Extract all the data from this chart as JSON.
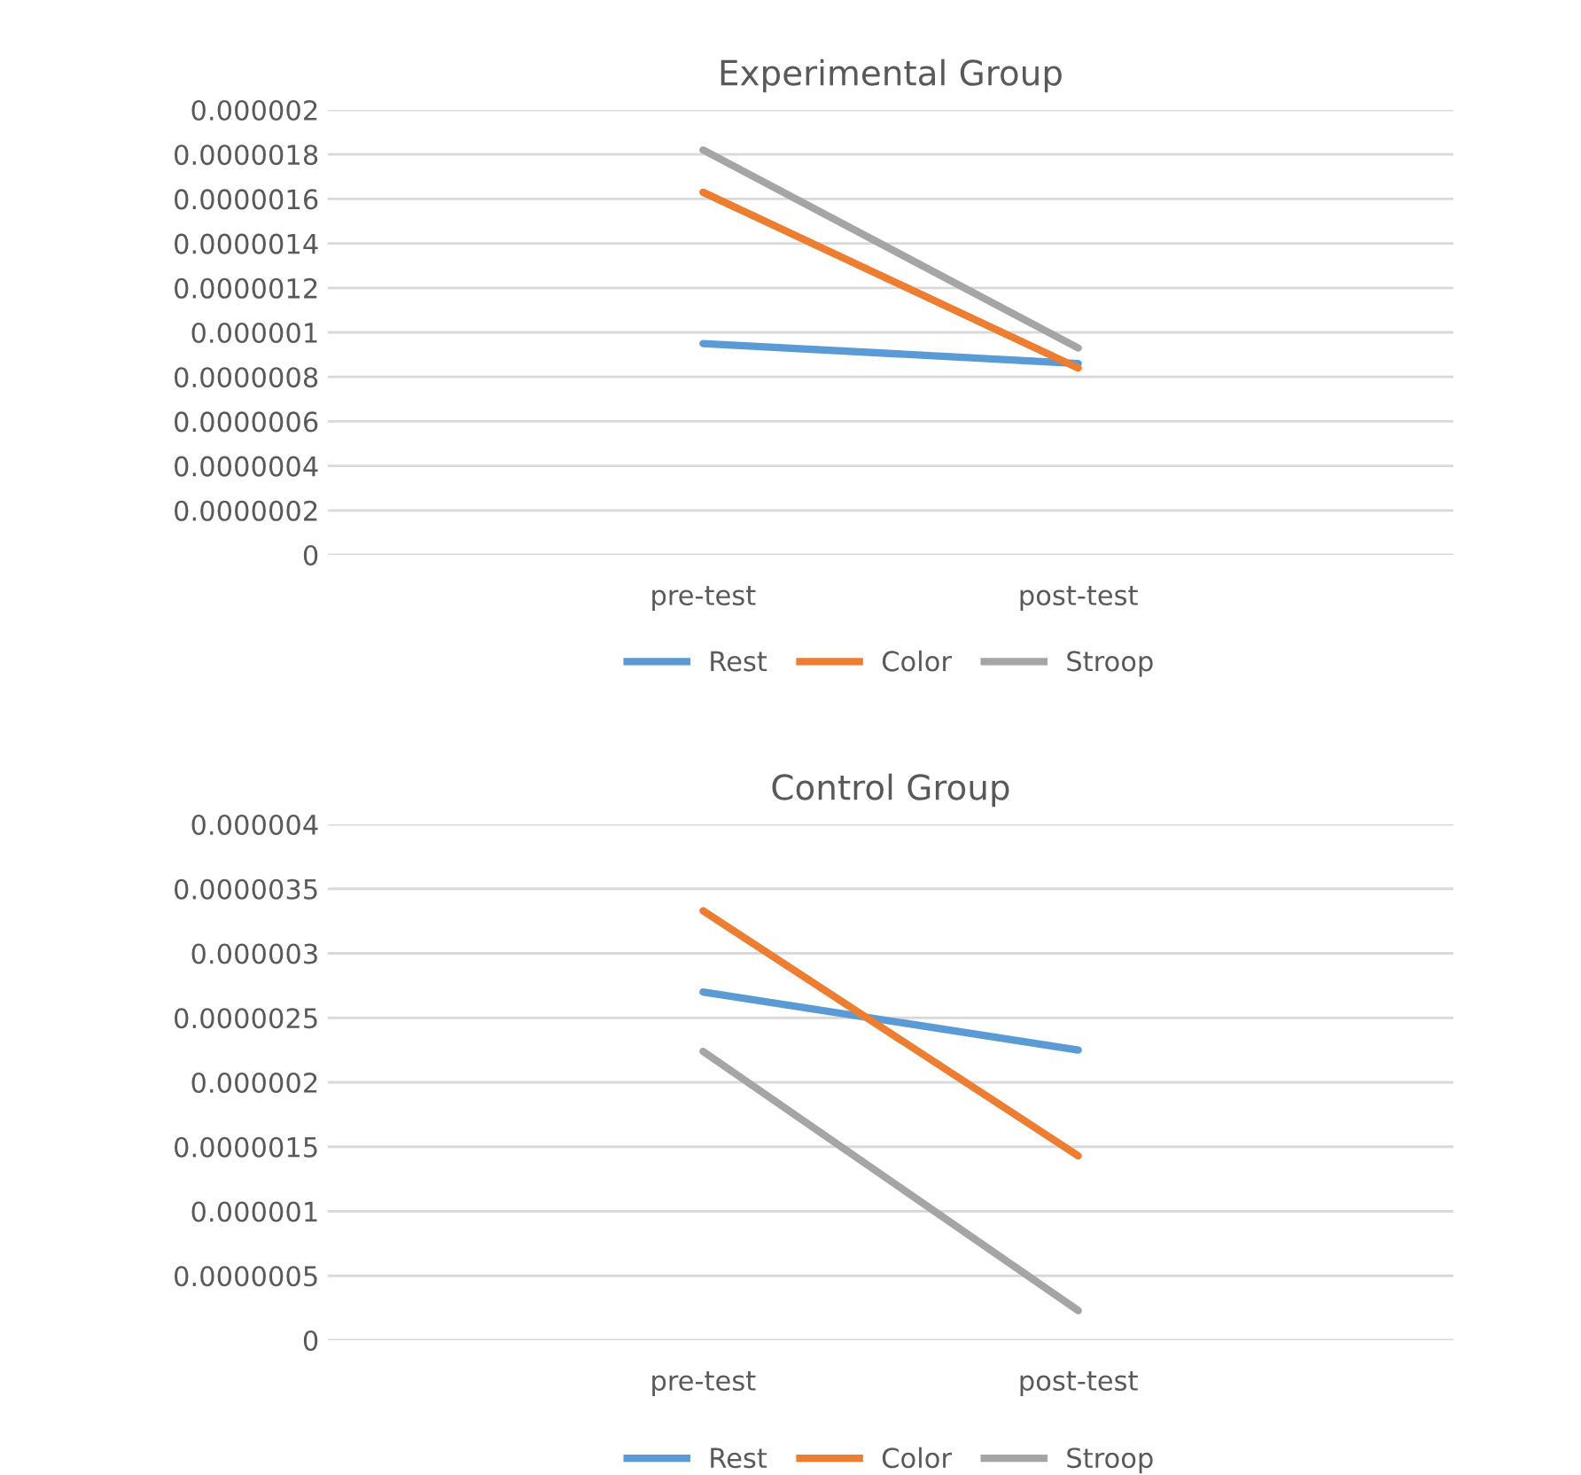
{
  "chart_data": [
    {
      "type": "line",
      "title": "Experimental Group",
      "categories": [
        "pre-test",
        "post-test"
      ],
      "series": [
        {
          "name": "Rest",
          "color": "#5b9bd5",
          "values": [
            9.5e-07,
            8.6e-07
          ]
        },
        {
          "name": "Color",
          "color": "#ed7d31",
          "values": [
            1.63e-06,
            8.4e-07
          ]
        },
        {
          "name": "Stroop",
          "color": "#a5a5a5",
          "values": [
            1.82e-06,
            9.3e-07
          ]
        }
      ],
      "ylim": [
        0,
        2e-06
      ],
      "yticks": [
        {
          "value": 0,
          "label": "0"
        },
        {
          "value": 2e-07,
          "label": "0.0000002"
        },
        {
          "value": 4e-07,
          "label": "0.0000004"
        },
        {
          "value": 6e-07,
          "label": "0.0000006"
        },
        {
          "value": 8e-07,
          "label": "0.0000008"
        },
        {
          "value": 1e-06,
          "label": "0.000001"
        },
        {
          "value": 1.2e-06,
          "label": "0.0000012"
        },
        {
          "value": 1.4e-06,
          "label": "0.0000014"
        },
        {
          "value": 1.6e-06,
          "label": "0.0000016"
        },
        {
          "value": 1.8e-06,
          "label": "0.0000018"
        },
        {
          "value": 2e-06,
          "label": "0.000002"
        }
      ],
      "grid": "y",
      "legend": "bottom",
      "marker": "none",
      "line_style": "solid"
    },
    {
      "type": "line",
      "title": "Control Group",
      "categories": [
        "pre-test",
        "post-test"
      ],
      "series": [
        {
          "name": "Rest",
          "color": "#5b9bd5",
          "values": [
            2.7e-06,
            2.25e-06
          ]
        },
        {
          "name": "Color",
          "color": "#ed7d31",
          "values": [
            3.33e-06,
            1.43e-06
          ]
        },
        {
          "name": "Stroop",
          "color": "#a5a5a5",
          "values": [
            2.24e-06,
            2.3e-07
          ]
        }
      ],
      "ylim": [
        0,
        4e-06
      ],
      "yticks": [
        {
          "value": 0,
          "label": "0"
        },
        {
          "value": 5e-07,
          "label": "0.0000005"
        },
        {
          "value": 1e-06,
          "label": "0.000001"
        },
        {
          "value": 1.5e-06,
          "label": "0.0000015"
        },
        {
          "value": 2e-06,
          "label": "0.000002"
        },
        {
          "value": 2.5e-06,
          "label": "0.0000025"
        },
        {
          "value": 3e-06,
          "label": "0.000003"
        },
        {
          "value": 3.5e-06,
          "label": "0.0000035"
        },
        {
          "value": 4e-06,
          "label": "0.000004"
        }
      ],
      "grid": "y",
      "legend": "bottom",
      "marker": "none",
      "line_style": "solid"
    }
  ]
}
